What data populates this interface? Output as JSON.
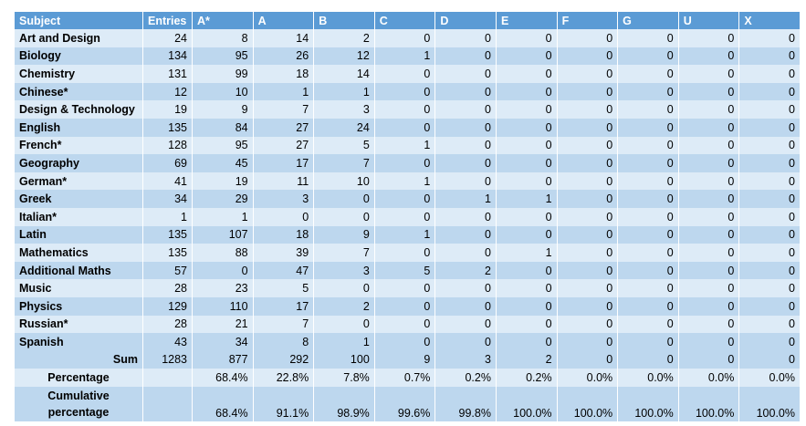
{
  "headers": [
    "Subject",
    "Entries",
    "A*",
    "A",
    "B",
    "C",
    "D",
    "E",
    "F",
    "G",
    "U",
    "X"
  ],
  "rows": [
    {
      "subject": "Art and Design",
      "values": [
        "24",
        "8",
        "14",
        "2",
        "0",
        "0",
        "0",
        "0",
        "0",
        "0",
        "0"
      ]
    },
    {
      "subject": "Biology",
      "values": [
        "134",
        "95",
        "26",
        "12",
        "1",
        "0",
        "0",
        "0",
        "0",
        "0",
        "0"
      ]
    },
    {
      "subject": "Chemistry",
      "values": [
        "131",
        "99",
        "18",
        "14",
        "0",
        "0",
        "0",
        "0",
        "0",
        "0",
        "0"
      ]
    },
    {
      "subject": "Chinese*",
      "values": [
        "12",
        "10",
        "1",
        "1",
        "0",
        "0",
        "0",
        "0",
        "0",
        "0",
        "0"
      ]
    },
    {
      "subject": "Design & Technology",
      "values": [
        "19",
        "9",
        "7",
        "3",
        "0",
        "0",
        "0",
        "0",
        "0",
        "0",
        "0"
      ]
    },
    {
      "subject": "English",
      "values": [
        "135",
        "84",
        "27",
        "24",
        "0",
        "0",
        "0",
        "0",
        "0",
        "0",
        "0"
      ]
    },
    {
      "subject": "French*",
      "values": [
        "128",
        "95",
        "27",
        "5",
        "1",
        "0",
        "0",
        "0",
        "0",
        "0",
        "0"
      ]
    },
    {
      "subject": "Geography",
      "values": [
        "69",
        "45",
        "17",
        "7",
        "0",
        "0",
        "0",
        "0",
        "0",
        "0",
        "0"
      ]
    },
    {
      "subject": "German*",
      "values": [
        "41",
        "19",
        "11",
        "10",
        "1",
        "0",
        "0",
        "0",
        "0",
        "0",
        "0"
      ]
    },
    {
      "subject": "Greek",
      "values": [
        "34",
        "29",
        "3",
        "0",
        "0",
        "1",
        "1",
        "0",
        "0",
        "0",
        "0"
      ]
    },
    {
      "subject": "Italian*",
      "values": [
        "1",
        "1",
        "0",
        "0",
        "0",
        "0",
        "0",
        "0",
        "0",
        "0",
        "0"
      ]
    },
    {
      "subject": "Latin",
      "values": [
        "135",
        "107",
        "18",
        "9",
        "1",
        "0",
        "0",
        "0",
        "0",
        "0",
        "0"
      ]
    },
    {
      "subject": "Mathematics",
      "values": [
        "135",
        "88",
        "39",
        "7",
        "0",
        "0",
        "1",
        "0",
        "0",
        "0",
        "0"
      ]
    },
    {
      "subject": "Additional Maths",
      "values": [
        "57",
        "0",
        "47",
        "3",
        "5",
        "2",
        "0",
        "0",
        "0",
        "0",
        "0"
      ]
    },
    {
      "subject": "Music",
      "values": [
        "28",
        "23",
        "5",
        "0",
        "0",
        "0",
        "0",
        "0",
        "0",
        "0",
        "0"
      ]
    },
    {
      "subject": "Physics",
      "values": [
        "129",
        "110",
        "17",
        "2",
        "0",
        "0",
        "0",
        "0",
        "0",
        "0",
        "0"
      ]
    },
    {
      "subject": "Russian*",
      "values": [
        "28",
        "21",
        "7",
        "0",
        "0",
        "0",
        "0",
        "0",
        "0",
        "0",
        "0"
      ]
    },
    {
      "subject": "Spanish",
      "values": [
        "43",
        "34",
        "8",
        "1",
        "0",
        "0",
        "0",
        "0",
        "0",
        "0",
        "0"
      ]
    }
  ],
  "sum": {
    "label": "Sum",
    "values": [
      "1283",
      "877",
      "292",
      "100",
      "9",
      "3",
      "2",
      "0",
      "0",
      "0",
      "0"
    ]
  },
  "percentage": {
    "label": "Percentage",
    "values": [
      "",
      "68.4%",
      "22.8%",
      "7.8%",
      "0.7%",
      "0.2%",
      "0.2%",
      "0.0%",
      "0.0%",
      "0.0%",
      "0.0%"
    ]
  },
  "cumulative": {
    "label": "Cumulative percentage",
    "values": [
      "",
      "68.4%",
      "91.1%",
      "98.9%",
      "99.6%",
      "99.8%",
      "100.0%",
      "100.0%",
      "100.0%",
      "100.0%",
      "100.0%"
    ]
  },
  "colors": {
    "header": "#5b9bd5",
    "row_light": "#ddebf7",
    "row_dark": "#bdd7ee"
  }
}
